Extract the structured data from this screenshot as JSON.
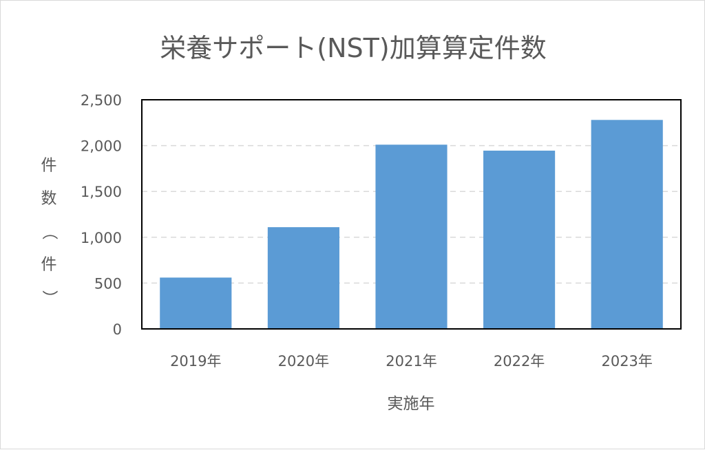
{
  "chart_data": {
    "type": "bar",
    "title": "栄養サポート(NST)加算算定件数",
    "xlabel": "実施年",
    "ylabel": "件数（件）",
    "categories": [
      "2019年",
      "2020年",
      "2021年",
      "2022年",
      "2023年"
    ],
    "values": [
      560,
      1110,
      2010,
      1945,
      2280
    ],
    "ylim": [
      0,
      2500
    ],
    "yticks": [
      0,
      500,
      1000,
      1500,
      2000,
      2500
    ],
    "ytick_labels": [
      "0",
      "500",
      "1,000",
      "1,500",
      "2,000",
      "2,500"
    ],
    "grid": true,
    "legend": "none",
    "colors": {
      "bar": "#5b9bd5",
      "grid": "#d9d9d9",
      "axis": "#000000",
      "text": "#595959"
    }
  }
}
